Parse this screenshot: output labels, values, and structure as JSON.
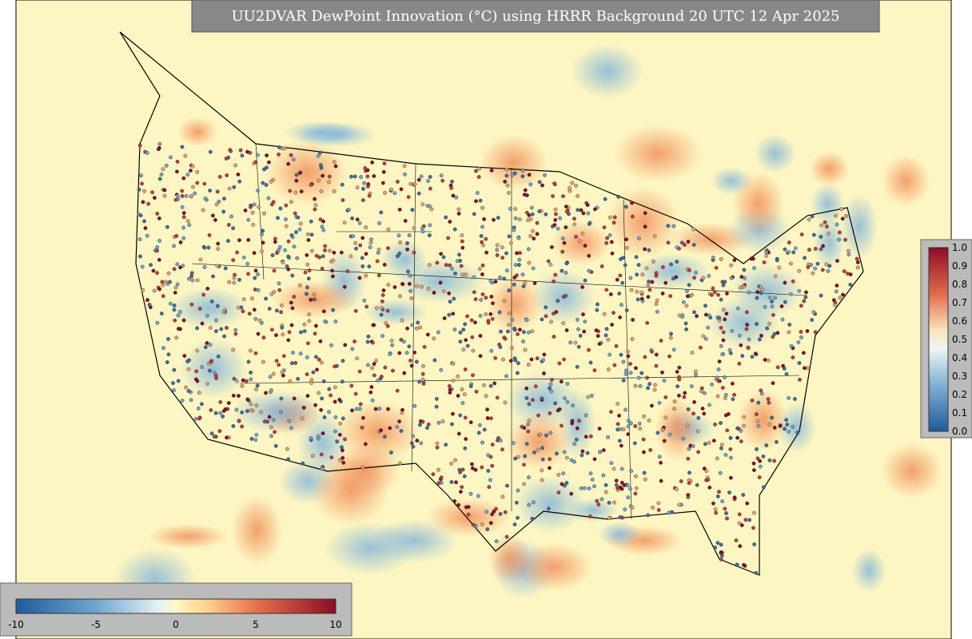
{
  "header": {
    "title": "UU2DVAR DewPoint Innovation (°C) using HRRR Background 20 UTC 12 Apr 2025"
  },
  "innovation_colorbar": {
    "labels": [
      "-10",
      "-5",
      "0",
      "5",
      "10"
    ]
  },
  "weight_colorbar": {
    "labels": [
      "1.0",
      "0.9",
      "0.8",
      "0.7",
      "0.6",
      "0.5",
      "0.4",
      "0.3",
      "0.2",
      "0.1",
      "0.0"
    ]
  }
}
